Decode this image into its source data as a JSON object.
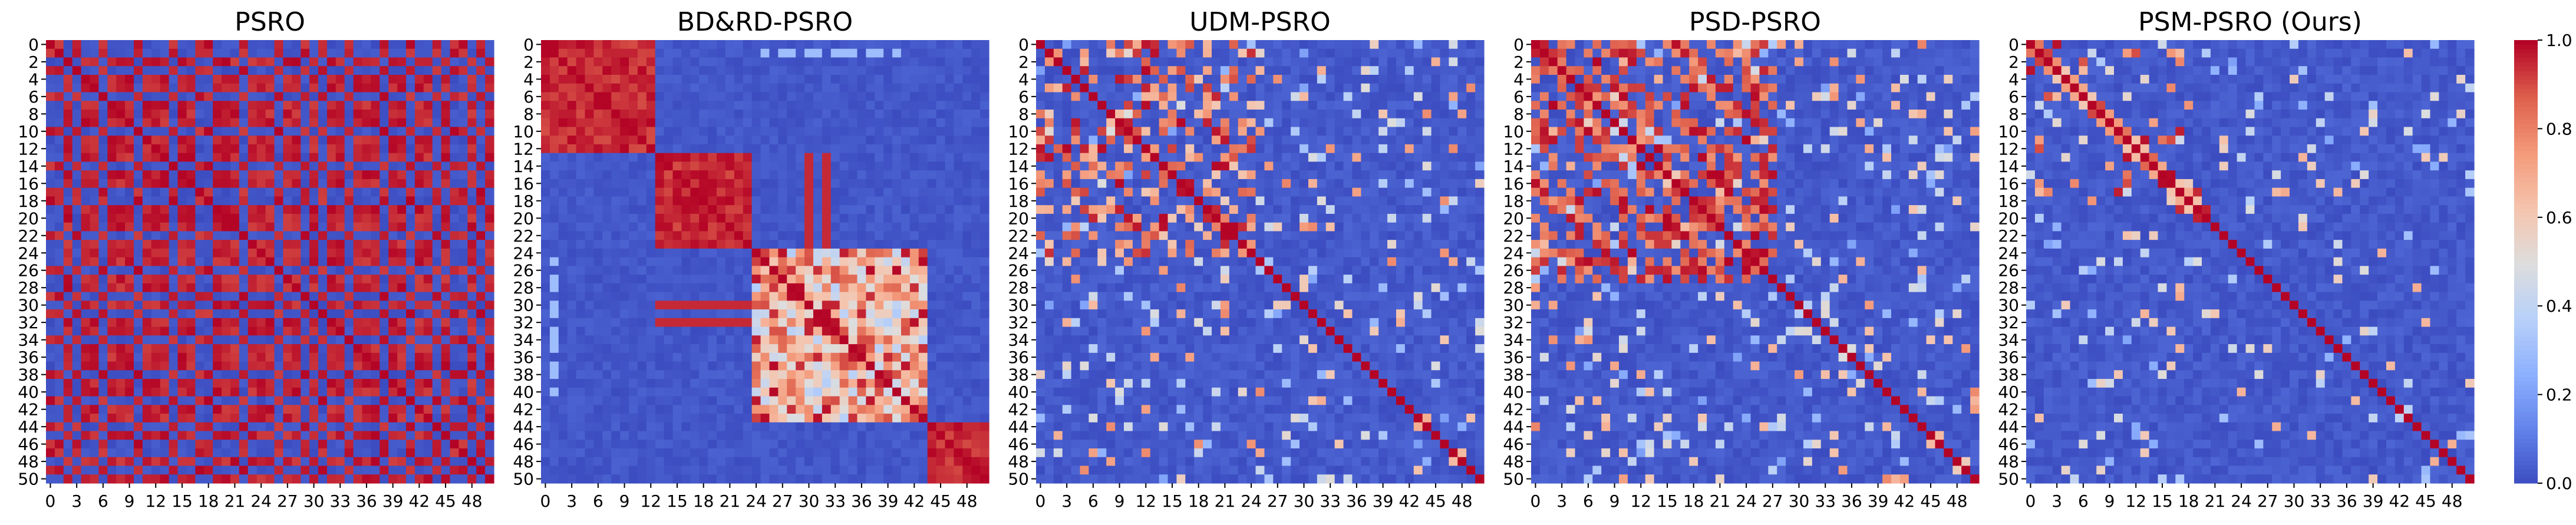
{
  "chart_data": {
    "type": "heatmap",
    "colormap": "coolwarm",
    "colorbar": {
      "range": [
        0.0,
        1.0
      ],
      "ticks": [
        "0.0",
        "0.2",
        "0.4",
        "0.6",
        "0.8",
        "1.0"
      ]
    },
    "x_ticks": [
      "0",
      "3",
      "6",
      "9",
      "12",
      "15",
      "18",
      "21",
      "24",
      "27",
      "30",
      "33",
      "36",
      "39",
      "42",
      "45",
      "48"
    ],
    "y_ticks": [
      "0",
      "2",
      "4",
      "6",
      "8",
      "10",
      "12",
      "14",
      "16",
      "18",
      "20",
      "22",
      "24",
      "26",
      "28",
      "30",
      "32",
      "34",
      "36",
      "38",
      "40",
      "42",
      "44",
      "46",
      "48",
      "50"
    ],
    "matrix_size": 51,
    "panels": [
      {
        "title": "PSRO",
        "pattern": "psro"
      },
      {
        "title": "BD&RD-PSRO",
        "pattern": "blocks"
      },
      {
        "title": "UDM-PSRO",
        "pattern": "udm"
      },
      {
        "title": "PSD-PSRO",
        "pattern": "psd"
      },
      {
        "title": "PSM-PSRO (Ours)",
        "pattern": "psm"
      }
    ]
  }
}
